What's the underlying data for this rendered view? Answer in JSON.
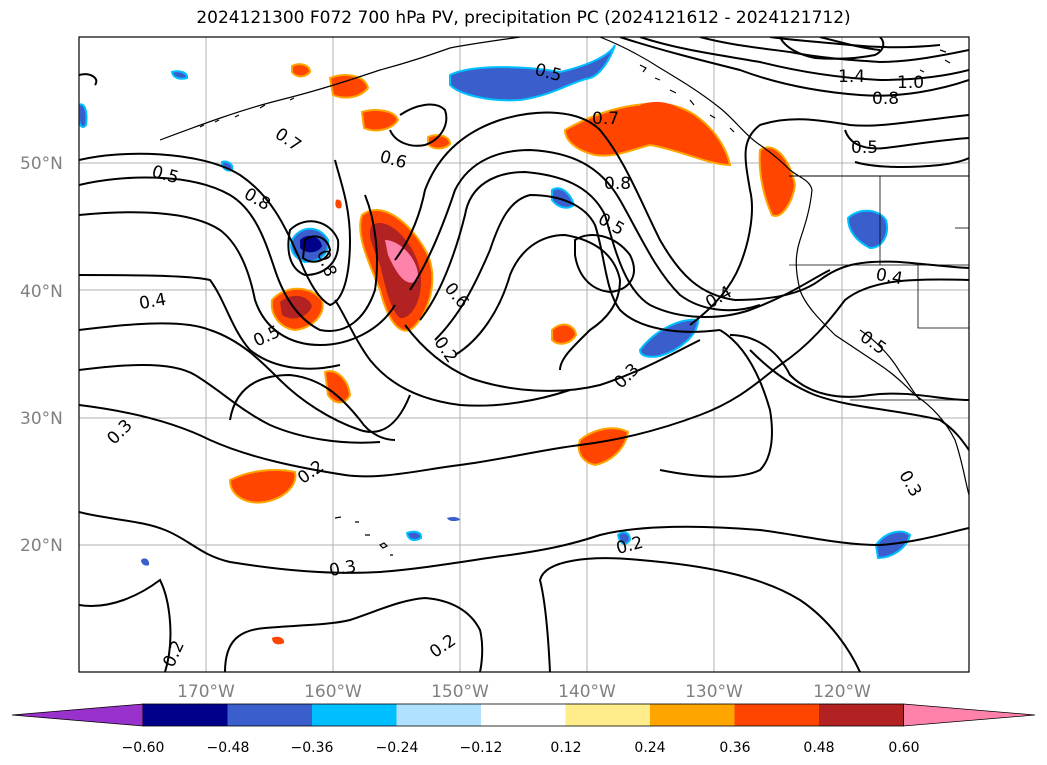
{
  "title": "2024121300 F072 700 hPa PV, precipitation PC (2024121612 - 2024121712)",
  "lat_labels": [
    "50°N",
    "40°N",
    "30°N",
    "20°N"
  ],
  "lon_labels": [
    "170°W",
    "160°W",
    "150°W",
    "140°W",
    "130°W",
    "120°W"
  ],
  "contour_labels": [
    "0.5",
    "1.4",
    "1.0",
    "0.8",
    "0.5",
    "0.7",
    "0.6",
    "0.7",
    "0.8",
    "0.5",
    "0.8",
    "0.5",
    "0.4",
    "0.6",
    "0.2",
    "0.5",
    "0.8",
    "0.4",
    "0.3",
    "0.5",
    "0.4",
    "0.3",
    "0.2",
    "0.3",
    "0.3",
    "0.2",
    "0.2",
    "0.2"
  ],
  "colorbar": {
    "ticks": [
      "−0.60",
      "−0.48",
      "−0.36",
      "−0.24",
      "−0.12",
      "0.12",
      "0.24",
      "0.36",
      "0.48",
      "0.60"
    ],
    "colors": [
      "#9932cc",
      "#00008b",
      "#3a5fcd",
      "#00bfff",
      "#b0e2ff",
      "#ffffff",
      "#ffec8b",
      "#ffa500",
      "#ff4500",
      "#b22222",
      "#ff82ab"
    ]
  }
}
